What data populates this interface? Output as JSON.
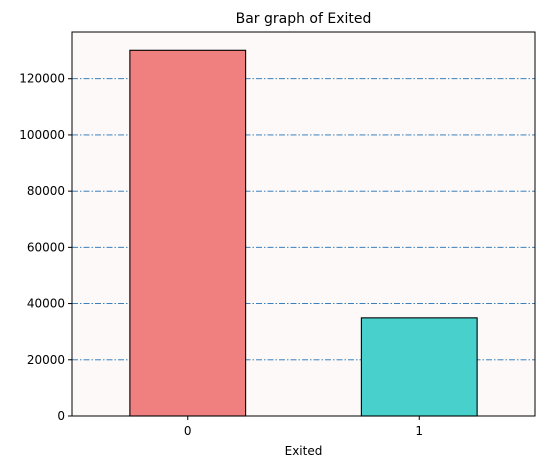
{
  "chart_data": {
    "type": "bar",
    "title": "Bar graph of Exited",
    "xlabel": "Exited",
    "ylabel": "",
    "categories": [
      "0",
      "1"
    ],
    "values": [
      130113,
      34921
    ],
    "bar_colors": [
      "#f08080",
      "#48d1cc"
    ],
    "bar_edge_color": "#000000",
    "plot_background": "#fdf9f8",
    "grid": {
      "axis": "y",
      "style": "dash-dot",
      "color": "#1f6fb4"
    },
    "ylim": [
      0,
      136620
    ],
    "yticks": [
      0,
      20000,
      40000,
      60000,
      80000,
      100000,
      120000
    ],
    "ytick_labels": [
      "0",
      "20000",
      "40000",
      "60000",
      "80000",
      "100000",
      "120000"
    ]
  }
}
